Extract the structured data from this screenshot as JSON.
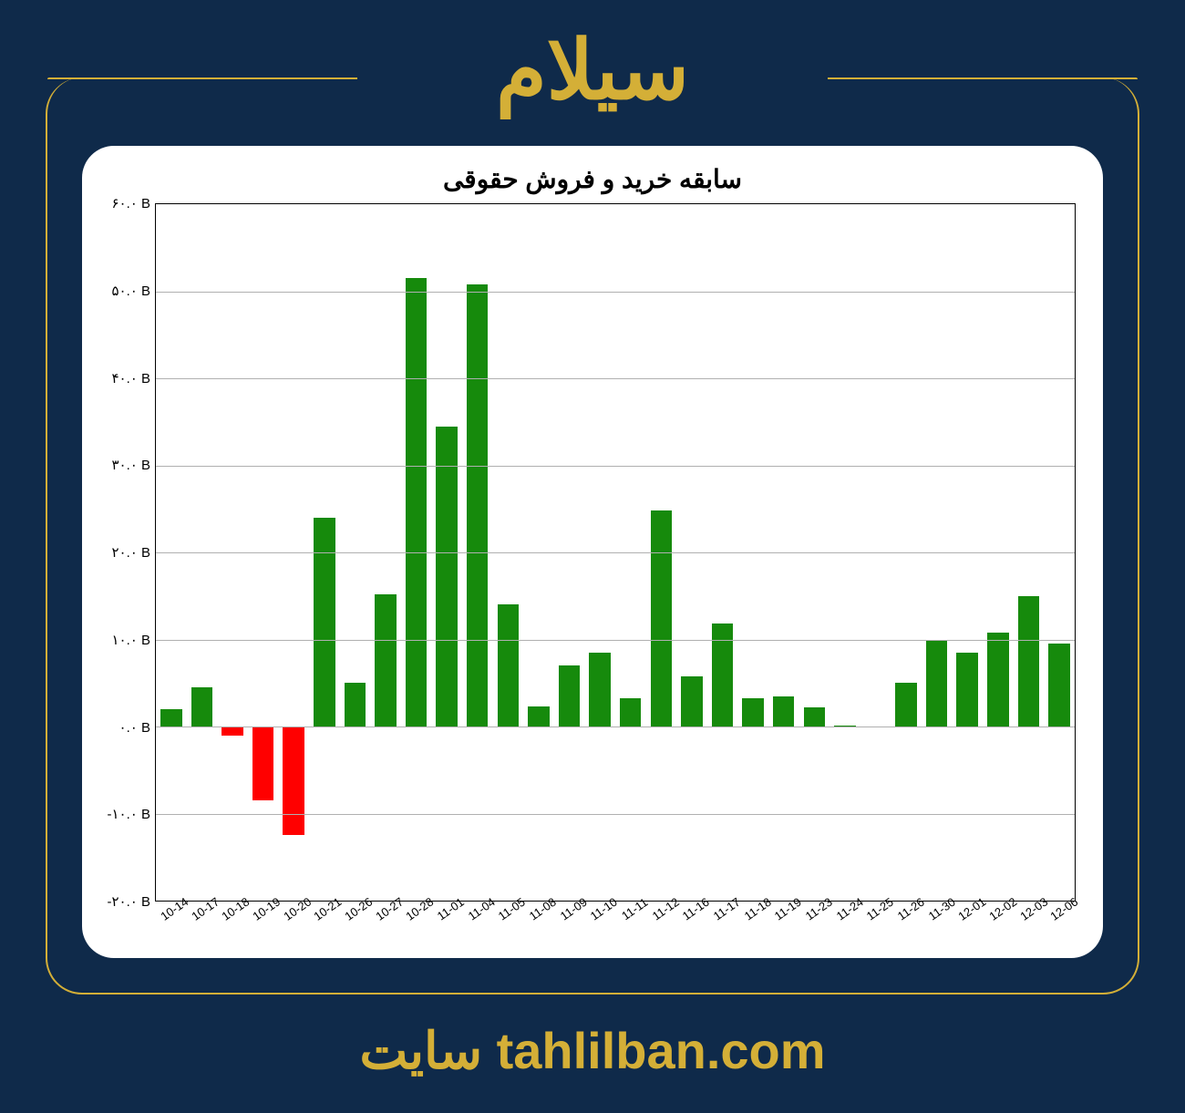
{
  "page": {
    "top_title": "سیلام",
    "footer_text": "سایت tahlilban.com",
    "background_color": "#0f2a4a",
    "accent_color": "#d4af37"
  },
  "chart": {
    "type": "bar",
    "title": "سابقه خرید و فروش حقوقی",
    "title_fontsize": 28,
    "background_color": "#ffffff",
    "grid_color": "#b0b0b0",
    "border_color": "#000000",
    "positive_color": "#168a0c",
    "negative_color": "#ff0000",
    "ylim": [
      -20,
      60
    ],
    "ytick_step": 10,
    "ytick_labels": [
      "-۲۰.۰ B",
      "-۱۰.۰ B",
      "۰.۰ B",
      "۱۰.۰ B",
      "۲۰.۰ B",
      "۳۰.۰ B",
      "۴۰.۰ B",
      "۵۰.۰ B",
      "۶۰.۰ B"
    ],
    "ytick_values": [
      -20,
      -10,
      0,
      10,
      20,
      30,
      40,
      50,
      60
    ],
    "xlabel_fontsize": 13,
    "xlabel_rotation": -35,
    "bar_width": 0.7,
    "categories": [
      "10-14",
      "10-17",
      "10-18",
      "10-19",
      "10-20",
      "10-21",
      "10-26",
      "10-27",
      "10-28",
      "11-01",
      "11-04",
      "11-05",
      "11-08",
      "11-09",
      "11-10",
      "11-11",
      "11-12",
      "11-16",
      "11-17",
      "11-18",
      "11-19",
      "11-23",
      "11-24",
      "11-25",
      "11-26",
      "11-30",
      "12-01",
      "12-02",
      "12-03",
      "12-06"
    ],
    "values": [
      2.0,
      4.5,
      -1.0,
      -8.5,
      -12.5,
      24.0,
      5.0,
      15.2,
      51.5,
      34.5,
      50.8,
      14.0,
      2.3,
      7.0,
      8.5,
      3.2,
      24.8,
      5.8,
      11.8,
      3.2,
      3.5,
      2.2,
      0.1,
      0,
      5.0,
      10.0,
      8.5,
      10.8,
      15.0,
      9.5
    ]
  }
}
